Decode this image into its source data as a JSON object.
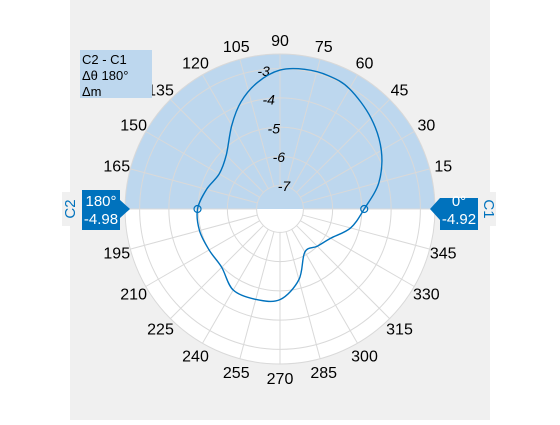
{
  "chart_data": {
    "type": "polar-line",
    "angle_unit": "degrees",
    "angle_ticks": [
      0,
      15,
      30,
      45,
      60,
      75,
      90,
      105,
      120,
      135,
      150,
      165,
      180,
      195,
      210,
      225,
      240,
      255,
      270,
      285,
      300,
      315,
      330,
      345
    ],
    "magnitude_ticks": [
      "-7",
      "-6",
      "-5",
      "-4",
      "-3"
    ],
    "rlim": [
      -7.8,
      -2.5
    ],
    "series": [
      {
        "color": "#0072bd",
        "points": [
          {
            "theta": 0,
            "r": -4.92
          },
          {
            "theta": 15,
            "r": -4.3
          },
          {
            "theta": 30,
            "r": -3.8
          },
          {
            "theta": 45,
            "r": -3.4
          },
          {
            "theta": 60,
            "r": -3.05
          },
          {
            "theta": 70,
            "r": -2.95
          },
          {
            "theta": 80,
            "r": -2.95
          },
          {
            "theta": 90,
            "r": -3.05
          },
          {
            "theta": 100,
            "r": -3.4
          },
          {
            "theta": 110,
            "r": -3.9
          },
          {
            "theta": 120,
            "r": -4.5
          },
          {
            "theta": 135,
            "r": -5.2
          },
          {
            "theta": 150,
            "r": -5.4
          },
          {
            "theta": 165,
            "r": -5.2
          },
          {
            "theta": 180,
            "r": -4.98
          },
          {
            "theta": 195,
            "r": -4.95
          },
          {
            "theta": 210,
            "r": -5.0
          },
          {
            "theta": 225,
            "r": -4.98
          },
          {
            "theta": 240,
            "r": -4.6
          },
          {
            "theta": 255,
            "r": -4.6
          },
          {
            "theta": 270,
            "r": -4.7
          },
          {
            "theta": 285,
            "r": -5.3
          },
          {
            "theta": 300,
            "r": -6.1
          },
          {
            "theta": 315,
            "r": -6.0
          },
          {
            "theta": 330,
            "r": -5.8
          },
          {
            "theta": 345,
            "r": -5.3
          }
        ]
      }
    ],
    "shaded_region": {
      "from_theta": 0,
      "to_theta": 180,
      "color": "#bdd7ee"
    },
    "cursors": [
      {
        "name": "C1",
        "theta_label": "0°",
        "value_label": "-4.92",
        "theta": 0,
        "r": -4.92
      },
      {
        "name": "C2",
        "theta_label": "180°",
        "value_label": "-4.98",
        "theta": 180,
        "r": -4.98
      }
    ],
    "info_box": {
      "line1": "C2 - C1",
      "line2": "Δθ 180°",
      "line3": "Δm"
    },
    "colors": {
      "accent": "#0072bd",
      "panel_bg": "#f0f0f0",
      "shade": "#bdd7ee",
      "grid": "#d9d9d9"
    }
  }
}
